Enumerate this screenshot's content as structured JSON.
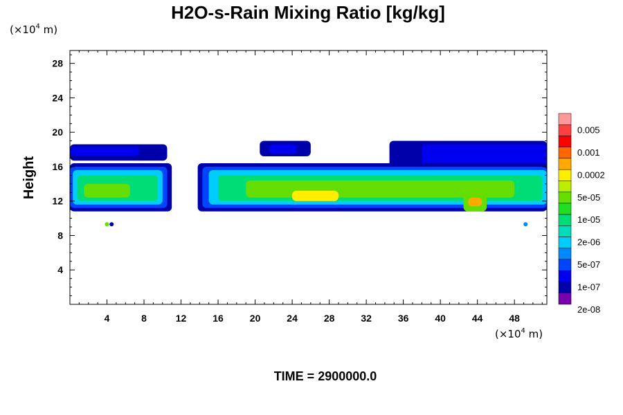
{
  "chart_data": {
    "type": "heatmap",
    "title": "H2O-s-Rain Mixing Ratio [kg/kg]",
    "ylabel": "Height",
    "x_unit": {
      "prefix": "(×10",
      "exp": "4",
      "suffix": " m)"
    },
    "y_unit": {
      "prefix": "(×10",
      "exp": "4",
      "suffix": " m)"
    },
    "xlim": [
      0,
      51.5
    ],
    "ylim": [
      0,
      29.5
    ],
    "x_ticks": [
      4,
      8,
      12,
      16,
      20,
      24,
      28,
      32,
      36,
      40,
      44,
      48
    ],
    "y_ticks": [
      4,
      8,
      12,
      16,
      20,
      24,
      28
    ],
    "colorbar": {
      "labels": [
        "0.005",
        "0.001",
        "0.0002",
        "5e-05",
        "1e-05",
        "2e-06",
        "5e-07",
        "1e-07",
        "2e-08"
      ],
      "colors_top_to_bottom": [
        "#ff9999",
        "#ff4040",
        "#ff0000",
        "#ff6600",
        "#ffaa00",
        "#ffee00",
        "#bbee00",
        "#66dd00",
        "#22dd22",
        "#00dd77",
        "#00ddbb",
        "#00ccff",
        "#0088ff",
        "#0044ff",
        "#0000ee",
        "#0000aa",
        "#7700aa"
      ]
    },
    "footer": "TIME = 2900000.0",
    "features": [
      {
        "kind": "band",
        "x": [
          0,
          10.5
        ],
        "y": [
          16.7,
          18.6
        ],
        "level": 1
      },
      {
        "kind": "band",
        "x": [
          0,
          7.5
        ],
        "y": [
          17.3,
          18.3
        ],
        "level": 2
      },
      {
        "kind": "band",
        "x": [
          20.5,
          26
        ],
        "y": [
          17.2,
          19.0
        ],
        "level": 1
      },
      {
        "kind": "band",
        "x": [
          21.5,
          24.5
        ],
        "y": [
          17.5,
          18.6
        ],
        "level": 2
      },
      {
        "kind": "band",
        "x": [
          34.5,
          51.5
        ],
        "y": [
          15.7,
          19.0
        ],
        "level": 1
      },
      {
        "kind": "band",
        "x": [
          38,
          51.5
        ],
        "y": [
          16.2,
          18.6
        ],
        "level": 2
      },
      {
        "kind": "band",
        "x": [
          0,
          11
        ],
        "y": [
          10.8,
          16.4
        ],
        "level": 1
      },
      {
        "kind": "band",
        "x": [
          0,
          10.5
        ],
        "y": [
          11.2,
          16.0
        ],
        "level": 3
      },
      {
        "kind": "band",
        "x": [
          0.3,
          10
        ],
        "y": [
          11.6,
          15.6
        ],
        "level": 5
      },
      {
        "kind": "band",
        "x": [
          0.8,
          9.5
        ],
        "y": [
          12.0,
          15.0
        ],
        "level": 7
      },
      {
        "kind": "band",
        "x": [
          1.5,
          6.5
        ],
        "y": [
          12.4,
          14.0
        ],
        "level": 9
      },
      {
        "kind": "band",
        "x": [
          13.8,
          51.5
        ],
        "y": [
          10.8,
          16.4
        ],
        "level": 1
      },
      {
        "kind": "band",
        "x": [
          14.3,
          51.5
        ],
        "y": [
          11.2,
          16.0
        ],
        "level": 3
      },
      {
        "kind": "band",
        "x": [
          15,
          51.5
        ],
        "y": [
          11.6,
          15.6
        ],
        "level": 5
      },
      {
        "kind": "band",
        "x": [
          16,
          51
        ],
        "y": [
          12.0,
          15.0
        ],
        "level": 7
      },
      {
        "kind": "band",
        "x": [
          19,
          48
        ],
        "y": [
          12.4,
          14.4
        ],
        "level": 9
      },
      {
        "kind": "band",
        "x": [
          24,
          29
        ],
        "y": [
          12.0,
          13.2
        ],
        "level": 11
      },
      {
        "kind": "band",
        "x": [
          42.5,
          45
        ],
        "y": [
          10.8,
          12.8
        ],
        "level": 9
      },
      {
        "kind": "band",
        "x": [
          43,
          44.5
        ],
        "y": [
          11.4,
          12.4
        ],
        "level": 12
      },
      {
        "kind": "dot",
        "x": 4.0,
        "y": 9.3,
        "level": 9
      },
      {
        "kind": "dot",
        "x": 4.5,
        "y": 9.3,
        "level": 1
      },
      {
        "kind": "dot",
        "x": 49.2,
        "y": 9.3,
        "level": 4
      }
    ]
  }
}
